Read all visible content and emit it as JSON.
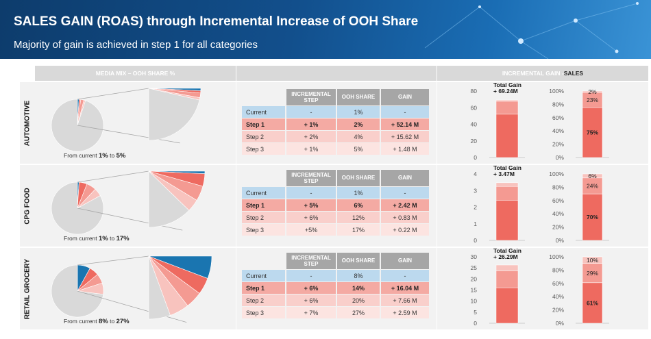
{
  "header": {
    "title": "SALES GAIN (ROAS) through Incremental Increase of OOH Share",
    "subtitle": "Majority of gain is achieved in step 1 for all categories"
  },
  "columns": {
    "media_mix": "MEDIA MIX – OOH SHARE %",
    "incremental_gain_a": "INCREMENTAL GAIN - ",
    "incremental_gain_b": "SALES"
  },
  "table_headers": [
    "INCREMENTAL STEP",
    "OOH SHARE",
    "GAIN"
  ],
  "colors": {
    "current_blue": "#1a75b0",
    "step1": "#ee6a60",
    "step2": "#f49a92",
    "step3": "#f8c3be",
    "pie_gray": "#d9d9d9",
    "row_current": "#bcd9ee",
    "row_step1": "#f4aaa3",
    "row_step2": "#f9cfcb",
    "row_step3": "#fce4e1",
    "header_gray": "#a6a6a6"
  },
  "sections": [
    {
      "label": "AUTOMOTIVE",
      "caption": {
        "a": "From current ",
        "from": "1%",
        "b": " to ",
        "to": "5%"
      },
      "rows": [
        {
          "label": "Current",
          "step": "-",
          "share": "1%",
          "gain": "-"
        },
        {
          "label": "Step 1",
          "step": "+ 1%",
          "share": "2%",
          "gain": "+ 52.14 M"
        },
        {
          "label": "Step 2",
          "step": "+ 2%",
          "share": "4%",
          "gain": "+ 15.62 M"
        },
        {
          "label": "Step 3",
          "step": "+ 1%",
          "share": "5%",
          "gain": "+ 1.48 M"
        }
      ]
    },
    {
      "label": "CPG FOOD",
      "caption": {
        "a": "From current ",
        "from": "1%",
        "b": " to ",
        "to": "17%"
      },
      "rows": [
        {
          "label": "Current",
          "step": "-",
          "share": "1%",
          "gain": "-"
        },
        {
          "label": "Step 1",
          "step": "+ 5%",
          "share": "6%",
          "gain": "+ 2.42 M"
        },
        {
          "label": "Step 2",
          "step": "+ 6%",
          "share": "12%",
          "gain": "+ 0.83 M"
        },
        {
          "label": "Step 3",
          "step": "+5%",
          "share": "17%",
          "gain": "+ 0.22 M"
        }
      ]
    },
    {
      "label": "RETAIL GROCERY",
      "caption": {
        "a": "From current ",
        "from": "8%",
        "b": " to ",
        "to": "27%"
      },
      "rows": [
        {
          "label": "Current",
          "step": "-",
          "share": "8%",
          "gain": "-"
        },
        {
          "label": "Step 1",
          "step": "+ 6%",
          "share": "14%",
          "gain": "+ 16.04 M"
        },
        {
          "label": "Step 2",
          "step": "+ 6%",
          "share": "20%",
          "gain": "+ 7.66 M"
        },
        {
          "label": "Step 3",
          "step": "+ 7%",
          "share": "27%",
          "gain": "+ 2.59 M"
        }
      ]
    }
  ],
  "chart_data": [
    {
      "type": "pie",
      "category": "AUTOMOTIVE",
      "categories": [
        "Current",
        "Step 1",
        "Step 2",
        "Step 3",
        "Rest"
      ],
      "values": [
        1,
        1,
        2,
        1,
        95
      ]
    },
    {
      "type": "bar",
      "category": "AUTOMOTIVE",
      "title": "Total Gain\n+ 69.24M",
      "stacked": true,
      "ylim": [
        0,
        80
      ],
      "yticks": [
        "0",
        "20",
        "40",
        "60",
        "80"
      ],
      "series": [
        {
          "name": "Step 1",
          "values": [
            52.14
          ]
        },
        {
          "name": "Step 2",
          "values": [
            15.62
          ]
        },
        {
          "name": "Step 3",
          "values": [
            1.48
          ]
        }
      ]
    },
    {
      "type": "bar",
      "category": "AUTOMOTIVE",
      "stacked": true,
      "percent": true,
      "ylim": [
        0,
        100
      ],
      "yticks": [
        "0%",
        "20%",
        "40%",
        "60%",
        "80%",
        "100%"
      ],
      "series": [
        {
          "name": "Step 1",
          "values": [
            75
          ],
          "label": "75%"
        },
        {
          "name": "Step 2",
          "values": [
            23
          ],
          "label": "23%"
        },
        {
          "name": "Step 3",
          "values": [
            2
          ],
          "label": "2%"
        }
      ]
    },
    {
      "type": "pie",
      "category": "CPG FOOD",
      "categories": [
        "Current",
        "Step 1",
        "Step 2",
        "Step 3",
        "Rest"
      ],
      "values": [
        1,
        5,
        6,
        5,
        83
      ]
    },
    {
      "type": "bar",
      "category": "CPG FOOD",
      "title": "Total Gain\n+ 3.47M",
      "stacked": true,
      "ylim": [
        0,
        4
      ],
      "yticks": [
        "0",
        "1",
        "2",
        "3",
        "4"
      ],
      "series": [
        {
          "name": "Step 1",
          "values": [
            2.42
          ]
        },
        {
          "name": "Step 2",
          "values": [
            0.83
          ]
        },
        {
          "name": "Step 3",
          "values": [
            0.22
          ]
        }
      ]
    },
    {
      "type": "bar",
      "category": "CPG FOOD",
      "stacked": true,
      "percent": true,
      "ylim": [
        0,
        100
      ],
      "yticks": [
        "0%",
        "20%",
        "40%",
        "60%",
        "80%",
        "100%"
      ],
      "series": [
        {
          "name": "Step 1",
          "values": [
            70
          ],
          "label": "70%"
        },
        {
          "name": "Step 2",
          "values": [
            24
          ],
          "label": "24%"
        },
        {
          "name": "Step 3",
          "values": [
            6
          ],
          "label": "6%"
        }
      ]
    },
    {
      "type": "pie",
      "category": "RETAIL GROCERY",
      "categories": [
        "Current",
        "Step 1",
        "Step 2",
        "Step 3",
        "Rest"
      ],
      "values": [
        8,
        6,
        6,
        7,
        73
      ]
    },
    {
      "type": "bar",
      "category": "RETAIL GROCERY",
      "title": "Total Gain\n+ 26.29M",
      "stacked": true,
      "ylim": [
        0,
        30
      ],
      "yticks": [
        "0",
        "5",
        "10",
        "15",
        "20",
        "25",
        "30"
      ],
      "series": [
        {
          "name": "Step 1",
          "values": [
            16.04
          ]
        },
        {
          "name": "Step 2",
          "values": [
            7.66
          ]
        },
        {
          "name": "Step 3",
          "values": [
            2.59
          ]
        }
      ]
    },
    {
      "type": "bar",
      "category": "RETAIL GROCERY",
      "stacked": true,
      "percent": true,
      "ylim": [
        0,
        100
      ],
      "yticks": [
        "0%",
        "20%",
        "40%",
        "60%",
        "80%",
        "100%"
      ],
      "series": [
        {
          "name": "Step 1",
          "values": [
            61
          ],
          "label": "61%"
        },
        {
          "name": "Step 2",
          "values": [
            29
          ],
          "label": "29%"
        },
        {
          "name": "Step 3",
          "values": [
            10
          ],
          "label": "10%"
        }
      ]
    }
  ]
}
